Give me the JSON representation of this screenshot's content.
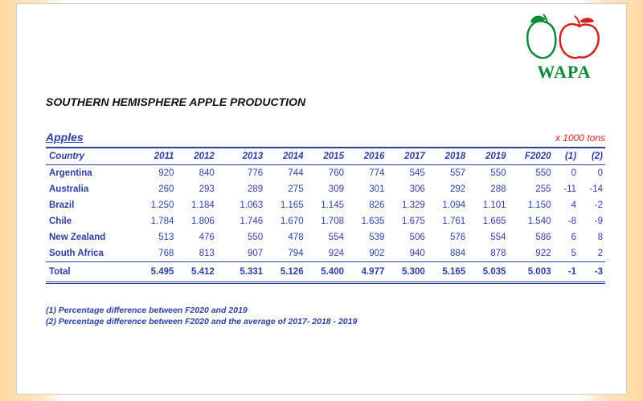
{
  "logo": {
    "text": "WAPA",
    "pear_color": "#0c8a3a",
    "apple_color": "#d22020",
    "text_color": "#0c8a3a"
  },
  "title": "SOUTHERN HEMISPHERE APPLE PRODUCTION",
  "section_label": "Apples",
  "unit_label": "x 1000 tons",
  "colors": {
    "heading_text": "#2a3fa0",
    "rule": "#2a3fa0",
    "unit_text": "#d22020",
    "background": "#ffffff",
    "gradient_edge": "#ffd9a0"
  },
  "table": {
    "country_header": "Country",
    "year_headers": [
      "2011",
      "2012",
      "2013",
      "2014",
      "2015",
      "2016",
      "2017",
      "2018",
      "2019",
      "F2020",
      "(1)",
      "(2)"
    ],
    "rows": [
      {
        "country": "Argentina",
        "v": [
          "920",
          "840",
          "776",
          "744",
          "760",
          "774",
          "545",
          "557",
          "550",
          "550",
          "0",
          "0"
        ]
      },
      {
        "country": "Australia",
        "v": [
          "260",
          "293",
          "289",
          "275",
          "309",
          "301",
          "306",
          "292",
          "288",
          "255",
          "-11",
          "-14"
        ]
      },
      {
        "country": "Brazil",
        "v": [
          "1.250",
          "1.184",
          "1.063",
          "1.165",
          "1.145",
          "826",
          "1.329",
          "1.094",
          "1.101",
          "1.150",
          "4",
          "-2"
        ]
      },
      {
        "country": "Chile",
        "v": [
          "1.784",
          "1.806",
          "1.746",
          "1.670",
          "1.708",
          "1.635",
          "1.675",
          "1.761",
          "1.665",
          "1.540",
          "-8",
          "-9"
        ]
      },
      {
        "country": "New Zealand",
        "v": [
          "513",
          "476",
          "550",
          "478",
          "554",
          "539",
          "506",
          "576",
          "554",
          "586",
          "6",
          "8"
        ]
      },
      {
        "country": "South Africa",
        "v": [
          "768",
          "813",
          "907",
          "794",
          "924",
          "902",
          "940",
          "884",
          "878",
          "922",
          "5",
          "2"
        ]
      }
    ],
    "total": {
      "label": "Total",
      "v": [
        "5.495",
        "5.412",
        "5.331",
        "5.126",
        "5.400",
        "4.977",
        "5.300",
        "5.165",
        "5.035",
        "5.003",
        "-1",
        "-3"
      ]
    }
  },
  "footnotes": [
    "(1) Percentage difference between F2020 and 2019",
    "(2) Percentage difference between F2020 and the average of  2017- 2018 - 2019"
  ]
}
